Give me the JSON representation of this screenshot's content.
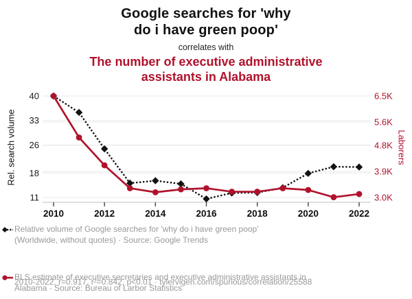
{
  "header": {
    "title_lines": [
      "Google searches for 'why",
      "do i have green poop'"
    ],
    "connector": "correlates with",
    "subtitle_lines": [
      "The number of executive administrative",
      "assistants in Alabama"
    ]
  },
  "colors": {
    "red": "#b0122c",
    "black": "#121212",
    "gray_text": "#999999",
    "gridline": "#e9e9e9",
    "axis_line": "#cccccc",
    "tick_mark": "#444444"
  },
  "chart_data": {
    "type": "line",
    "x": [
      2010,
      2011,
      2012,
      2013,
      2014,
      2015,
      2016,
      2017,
      2018,
      2019,
      2020,
      2021,
      2022
    ],
    "series": [
      {
        "name": "Relative volume of Google searches for 'why do i have green poop'",
        "axis": "left",
        "color": "#121212",
        "style": "dashed",
        "marker": "diamond",
        "values": [
          40,
          35.3,
          24.9,
          15.1,
          15.8,
          14.9,
          10.6,
          12.3,
          12.4,
          13.8,
          17.9,
          19.8,
          19.7
        ]
      },
      {
        "name": "BLS estimate of executive secretaries and executive administrative assistants in Alabama",
        "axis": "right",
        "unit": "K laborers",
        "color": "#b0122c",
        "style": "solid",
        "marker": "circle",
        "values": [
          6.5,
          5.07,
          4.11,
          3.32,
          3.18,
          3.28,
          3.32,
          3.2,
          3.2,
          3.32,
          3.26,
          3.01,
          3.12
        ]
      }
    ],
    "left_axis": {
      "label": "Rel. search volume",
      "ticks": [
        40,
        33,
        26,
        18,
        11
      ],
      "range": [
        11,
        40
      ]
    },
    "right_axis": {
      "label": "Laborers",
      "tick_labels": [
        "6.5K",
        "5.6K",
        "4.8K",
        "3.9K",
        "3.0K"
      ],
      "tick_values": [
        6.5,
        5.6,
        4.8,
        3.9,
        3.0
      ],
      "range": [
        3.0,
        6.5
      ]
    },
    "x_ticks": [
      2010,
      2012,
      2014,
      2016,
      2018,
      2020,
      2022
    ],
    "grid": true,
    "legend_position": "bottom"
  },
  "legend": {
    "entries": [
      {
        "icon": "diamond-dashed",
        "lines": [
          "Relative volume of Google searches for 'why do i have green poop'",
          "(Worldwide, without quotes) · Source: Google Trends"
        ]
      },
      {
        "icon": "circle-solid",
        "lines": [
          "BLS estimate of executive secretaries and executive administrative assistants in",
          "Alabama · Source: Bureau of Larbor Statistics"
        ]
      }
    ],
    "stats_line": "2010-2022, r=0.917, r²=0.842, p<0.01 · tylervigen.com/spurious/correlation/25588"
  }
}
